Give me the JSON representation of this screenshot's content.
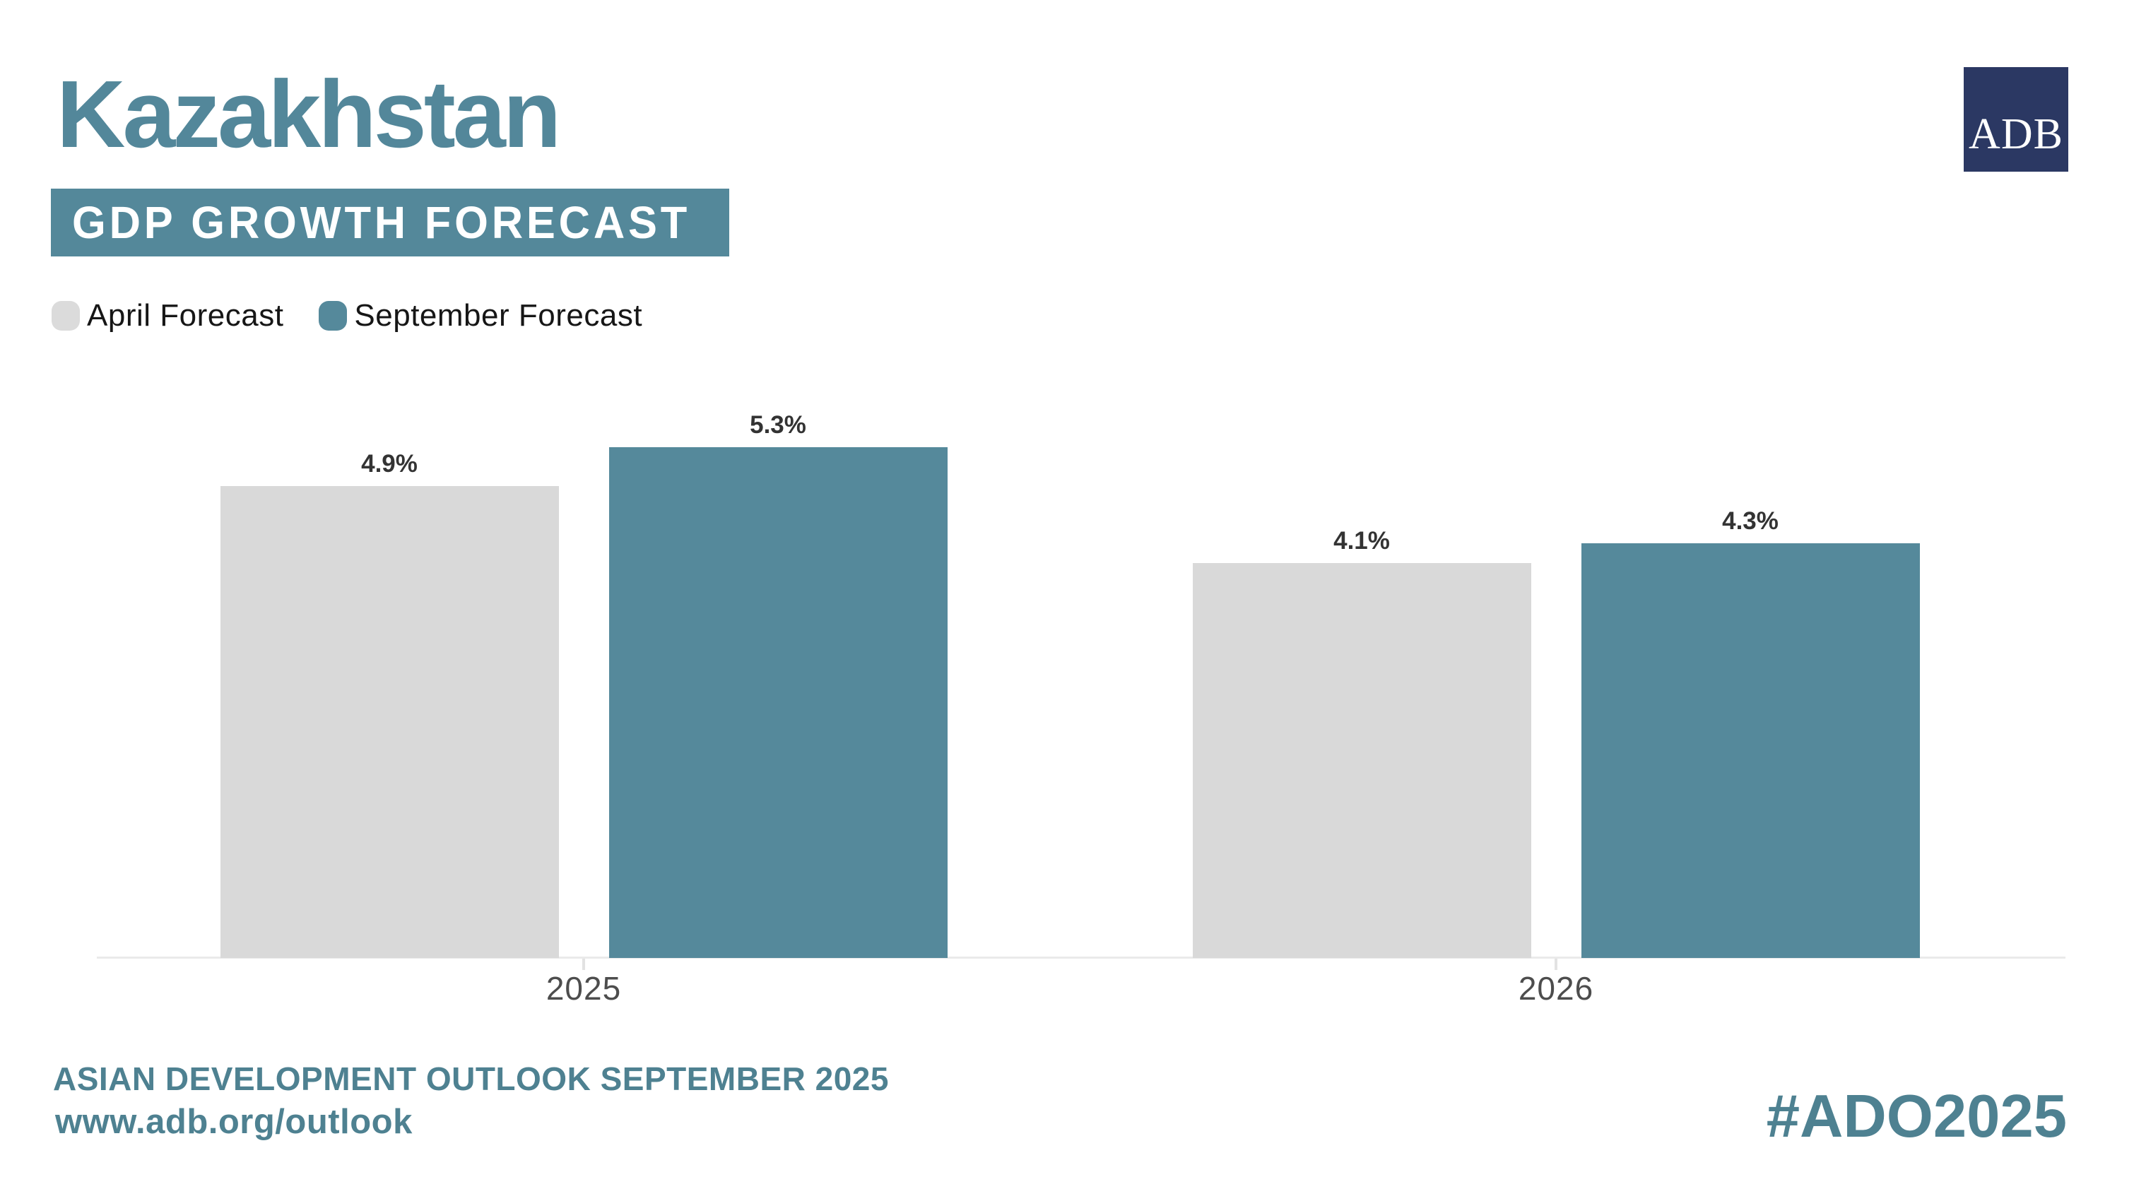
{
  "header": {
    "country": "Kazakhstan",
    "banner": "GDP GROWTH FORECAST"
  },
  "logo": {
    "text": "ADB",
    "background": "#2B3863"
  },
  "legend": [
    {
      "label": "April Forecast",
      "color": "#DBDBDB"
    },
    {
      "label": "September Forecast",
      "color": "#55899B"
    }
  ],
  "chart_data": {
    "type": "bar",
    "title": "Kazakhstan GDP Growth Forecast",
    "categories": [
      "2025",
      "2026"
    ],
    "series": [
      {
        "name": "April Forecast",
        "values": [
          4.9,
          4.1
        ],
        "labels": [
          "4.9%",
          "4.1%"
        ],
        "color": "#D9D9D9"
      },
      {
        "name": "September Forecast",
        "values": [
          5.3,
          4.3
        ],
        "labels": [
          "5.3%",
          "4.3%"
        ],
        "color": "#55899B"
      }
    ],
    "ylim": [
      0,
      5.5
    ],
    "grid": false,
    "legend_position": "top-left",
    "value_label_suffix": "%"
  },
  "footer": {
    "line1": "ASIAN DEVELOPMENT OUTLOOK SEPTEMBER 2025",
    "line2": "www.adb.org/outlook",
    "hashtag": "#ADO2025"
  },
  "colors": {
    "accent_teal": "#55899B",
    "banner_teal": "#54889A",
    "title_teal": "#53879A",
    "footer_teal": "#4E8191",
    "logo_navy": "#2B3863",
    "bar_gray": "#D9D9D9",
    "value_label": "#333333",
    "year_label": "#4D4D4D",
    "axis_line": "#EAEAEA"
  }
}
